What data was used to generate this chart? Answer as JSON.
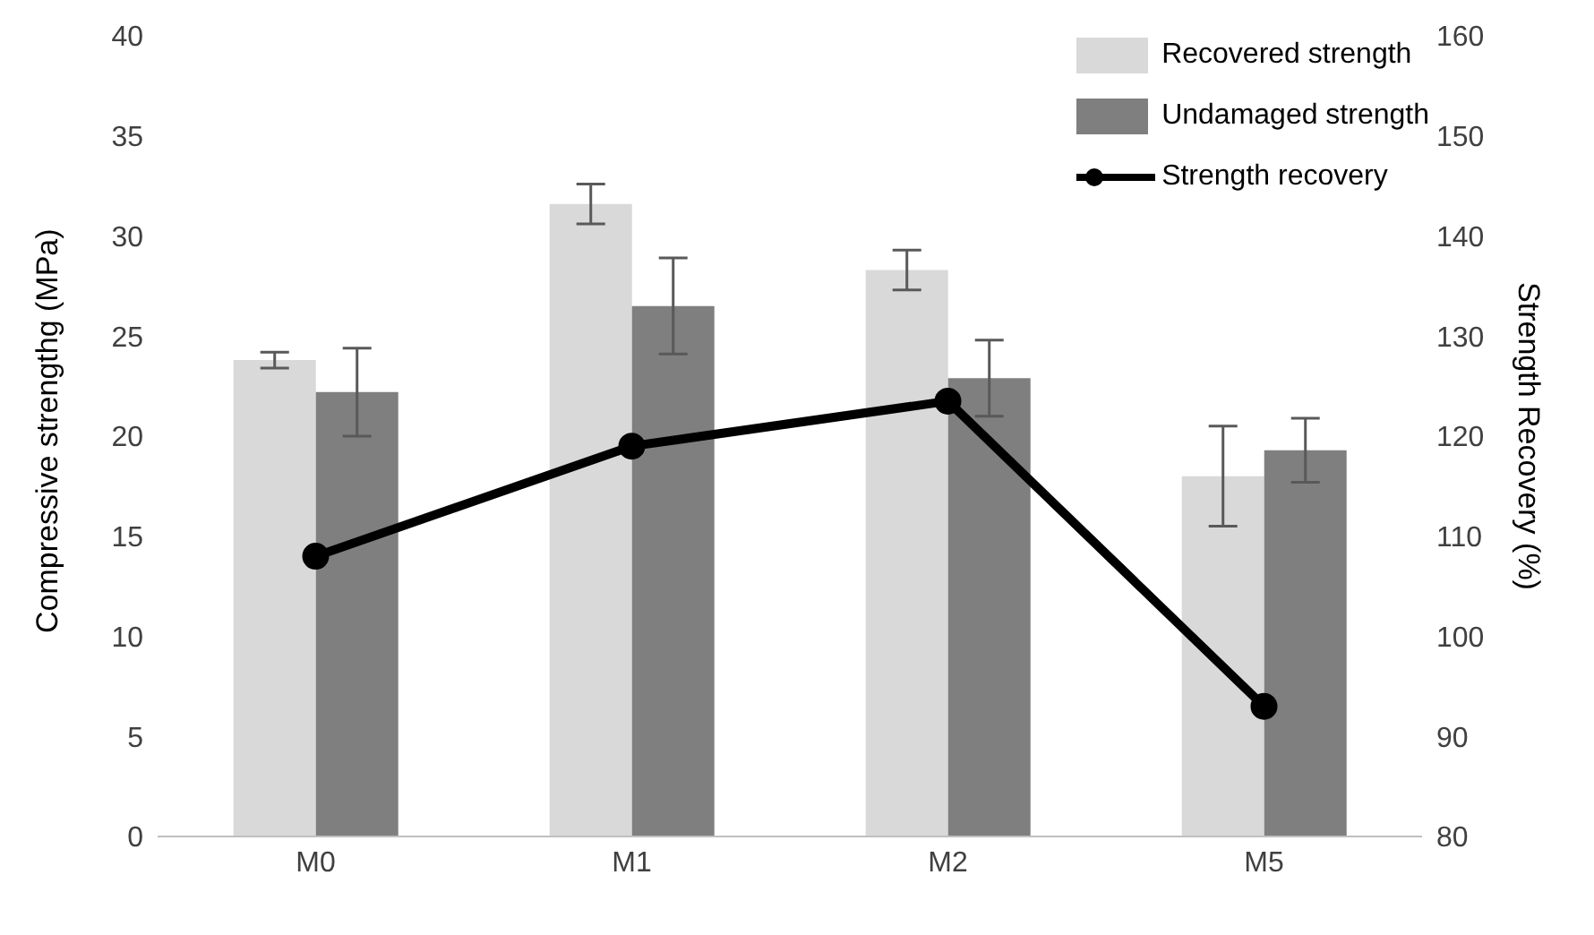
{
  "chart_data": {
    "type": "bar",
    "categories": [
      "M0",
      "M1",
      "M2",
      "M5"
    ],
    "series": [
      {
        "name": "Recovered strength",
        "color": "#d9d9d9",
        "values": [
          23.8,
          31.6,
          28.3,
          18.0
        ],
        "errors": [
          0.4,
          1.0,
          1.0,
          2.5
        ]
      },
      {
        "name": "Undamaged strength",
        "color": "#7f7f7f",
        "values": [
          22.2,
          26.5,
          22.9,
          19.3
        ],
        "errors": [
          2.2,
          2.4,
          1.9,
          1.6
        ]
      },
      {
        "name": "Strength recovery",
        "type": "line",
        "axis": "y2",
        "color": "#000000",
        "values": [
          108,
          119,
          123.5,
          93
        ]
      }
    ],
    "ylabel": "Compressive strengthg (MPa)",
    "y2label": "Strength Recovery (%)",
    "ylim": [
      0,
      40
    ],
    "yticks": [
      0,
      5,
      10,
      15,
      20,
      25,
      30,
      35,
      40
    ],
    "y2lim": [
      80,
      160
    ],
    "y2ticks": [
      80,
      90,
      100,
      110,
      120,
      130,
      140,
      150,
      160
    ],
    "grid": false,
    "legend": "top right",
    "marker": "circle",
    "line_style": "solid"
  }
}
